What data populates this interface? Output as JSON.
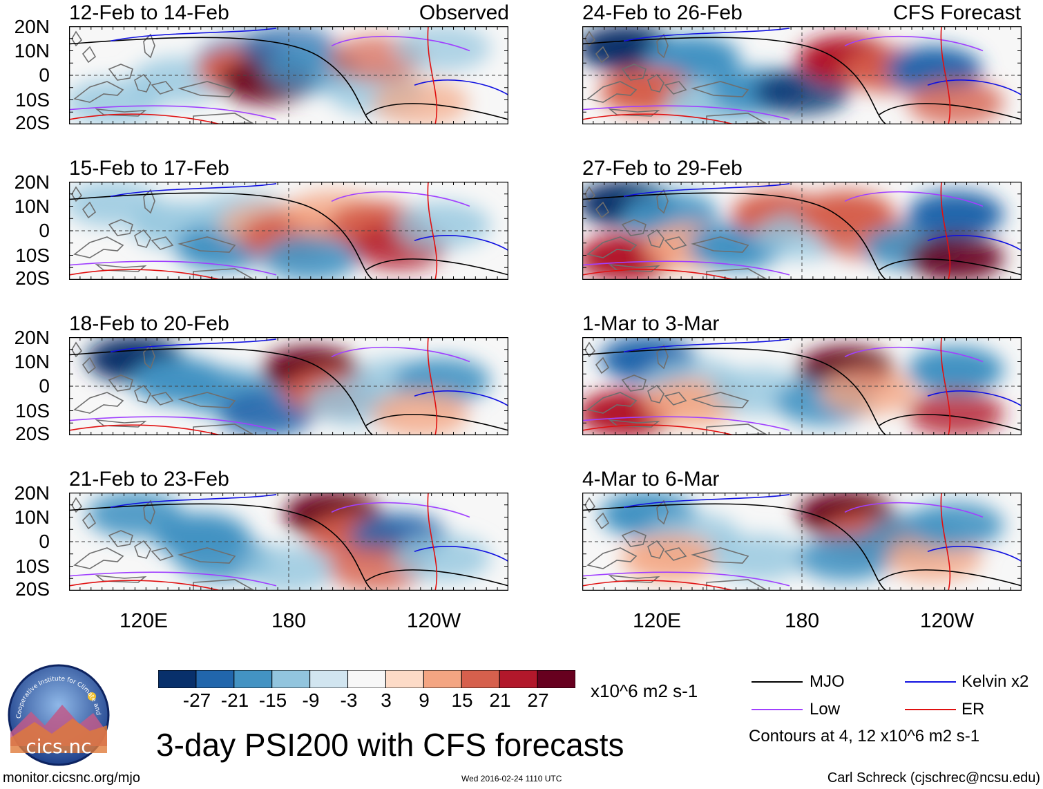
{
  "colors": {
    "scale": [
      "#08306b",
      "#2166ac",
      "#4393c3",
      "#92c5de",
      "#d1e5f0",
      "#f7f7f7",
      "#fddbc7",
      "#f4a582",
      "#d6604d",
      "#b2182b",
      "#67001f"
    ],
    "mjo": "#000000",
    "kelvin": "#1010e0",
    "low": "#a040ff",
    "er": "#e01010",
    "land": "#6e6e6e"
  },
  "panels": [
    {
      "title": "12-Feb to 14-Feb",
      "label": "Observed",
      "shading": [
        [
          3,
          8,
          "n2",
          0.9
        ],
        [
          7,
          2,
          "n1",
          0.8
        ],
        [
          5,
          5,
          "n1",
          0.8
        ],
        [
          4,
          8,
          "p2",
          1
        ],
        [
          5,
          9,
          "p4",
          0.9
        ],
        [
          2,
          10,
          "n3",
          0.7
        ],
        [
          4,
          11,
          "n2",
          0.8
        ],
        [
          6,
          14,
          "n1",
          0.8
        ],
        [
          3,
          14,
          "p2",
          0.7
        ],
        [
          7,
          16,
          "p1",
          0.7
        ],
        [
          2,
          17,
          "n1",
          0.7
        ]
      ]
    },
    {
      "title": "24-Feb to 26-Feb",
      "label": "CFS Forecast",
      "shading": [
        [
          2,
          2,
          "n4",
          1
        ],
        [
          3,
          5,
          "n2",
          1
        ],
        [
          6,
          3,
          "p2",
          1
        ],
        [
          7,
          6,
          "n1",
          0.9
        ],
        [
          6,
          8,
          "n2",
          1
        ],
        [
          6,
          10,
          "n4",
          0.8
        ],
        [
          3,
          12,
          "p3",
          1
        ],
        [
          4,
          14,
          "p2",
          0.9
        ],
        [
          4,
          16,
          "n3",
          1
        ],
        [
          7,
          17,
          "p2",
          0.8
        ]
      ]
    },
    {
      "title": "15-Feb to 17-Feb",
      "label": "",
      "shading": [
        [
          2,
          2,
          "n1",
          0.8
        ],
        [
          4,
          5,
          "n1",
          0.9
        ],
        [
          6,
          7,
          "n2",
          1
        ],
        [
          3,
          8,
          "n1",
          0.8
        ],
        [
          4,
          9,
          "p1",
          0.7
        ],
        [
          5,
          10,
          "p2",
          1
        ],
        [
          7,
          11,
          "n2",
          0.9
        ],
        [
          3,
          12,
          "p1",
          0.8
        ],
        [
          4,
          14,
          "p2",
          1
        ],
        [
          6,
          15,
          "p3",
          0.8
        ],
        [
          4,
          17,
          "n1",
          0.8
        ]
      ]
    },
    {
      "title": "27-Feb to 29-Feb",
      "label": "",
      "shading": [
        [
          2,
          2,
          "n4",
          1
        ],
        [
          3,
          4,
          "n2",
          0.9
        ],
        [
          7,
          2,
          "p3",
          1
        ],
        [
          6,
          5,
          "p1",
          0.9
        ],
        [
          6,
          7,
          "n2",
          1
        ],
        [
          3,
          9,
          "p2",
          1
        ],
        [
          5,
          10,
          "n1",
          0.8
        ],
        [
          3,
          12,
          "p2",
          1
        ],
        [
          5,
          13,
          "p2",
          0.8
        ],
        [
          6,
          15,
          "n2",
          0.9
        ],
        [
          3,
          17,
          "n3",
          1
        ],
        [
          7,
          17,
          "p4",
          0.9
        ]
      ]
    },
    {
      "title": "18-Feb to 20-Feb",
      "label": "",
      "shading": [
        [
          2,
          3,
          "n4",
          1
        ],
        [
          4,
          5,
          "n2",
          1
        ],
        [
          5,
          7,
          "n2",
          0.9
        ],
        [
          7,
          9,
          "n3",
          0.9
        ],
        [
          3,
          11,
          "p4",
          1
        ],
        [
          5,
          12,
          "p2",
          0.9
        ],
        [
          6,
          13,
          "n1",
          0.8
        ],
        [
          4,
          15,
          "n1",
          0.8
        ],
        [
          4,
          17,
          "n2",
          0.9
        ],
        [
          7,
          16,
          "p1",
          0.8
        ]
      ]
    },
    {
      "title": "1-Mar to 3-Mar",
      "label": "",
      "shading": [
        [
          2,
          3,
          "n3",
          1
        ],
        [
          4,
          5,
          "n1",
          0.8
        ],
        [
          7,
          2,
          "p3",
          1
        ],
        [
          6,
          5,
          "p1",
          0.9
        ],
        [
          5,
          8,
          "n1",
          0.8
        ],
        [
          3,
          12,
          "p4",
          1
        ],
        [
          6,
          11,
          "n2",
          0.9
        ],
        [
          5,
          13,
          "p1",
          0.8
        ],
        [
          3,
          17,
          "n2",
          1
        ],
        [
          7,
          17,
          "p3",
          0.8
        ]
      ]
    },
    {
      "title": "21-Feb to 23-Feb",
      "label": "",
      "shading": [
        [
          2,
          3,
          "n2",
          0.9
        ],
        [
          4,
          6,
          "n2",
          1
        ],
        [
          6,
          7,
          "n2",
          0.9
        ],
        [
          7,
          10,
          "n1",
          0.8
        ],
        [
          2,
          12,
          "p4",
          1
        ],
        [
          4,
          13,
          "p2",
          0.9
        ],
        [
          4,
          15,
          "n3",
          0.9
        ],
        [
          7,
          14,
          "p2",
          0.8
        ],
        [
          6,
          17,
          "n1",
          0.8
        ]
      ]
    },
    {
      "title": "4-Mar to 6-Mar",
      "label": "",
      "shading": [
        [
          2,
          3,
          "n2",
          1
        ],
        [
          4,
          5,
          "n1",
          0.8
        ],
        [
          6,
          4,
          "p1",
          0.9
        ],
        [
          6,
          8,
          "n1",
          0.8
        ],
        [
          2,
          12,
          "p4",
          1
        ],
        [
          4,
          13,
          "p2",
          0.9
        ],
        [
          6,
          12,
          "n2",
          0.9
        ],
        [
          4,
          15,
          "n2",
          0.8
        ],
        [
          6,
          16,
          "p1",
          0.8
        ],
        [
          3,
          17,
          "n2",
          0.9
        ]
      ]
    }
  ],
  "lat_labels": [
    "20N",
    "10N",
    "0",
    "10S",
    "20S"
  ],
  "lon_labels": [
    "120E",
    "180",
    "120W"
  ],
  "colorbar": {
    "ticks": [
      "-27",
      "-21",
      "-15",
      "-9",
      "-3",
      "3",
      "9",
      "15",
      "21",
      "27"
    ],
    "units": "x10^6 m2 s-1"
  },
  "legend": {
    "mjo": "MJO",
    "kelvin": "Kelvin x2",
    "low": "Low",
    "er": "ER",
    "contours_note": "Contours at 4, 12 x10^6 m2 s-1"
  },
  "logo_text": "cics.nc",
  "logo_arc_text": "Cooperative Institute for Climate and Satellites",
  "main_title": "3-day PSI200 with CFS forecasts",
  "footer": {
    "url": "monitor.cicsnc.org/mjo",
    "timestamp": "Wed 2016-02-24 1110 UTC",
    "author": "Carl Schreck (cjschrec@ncsu.edu)"
  }
}
